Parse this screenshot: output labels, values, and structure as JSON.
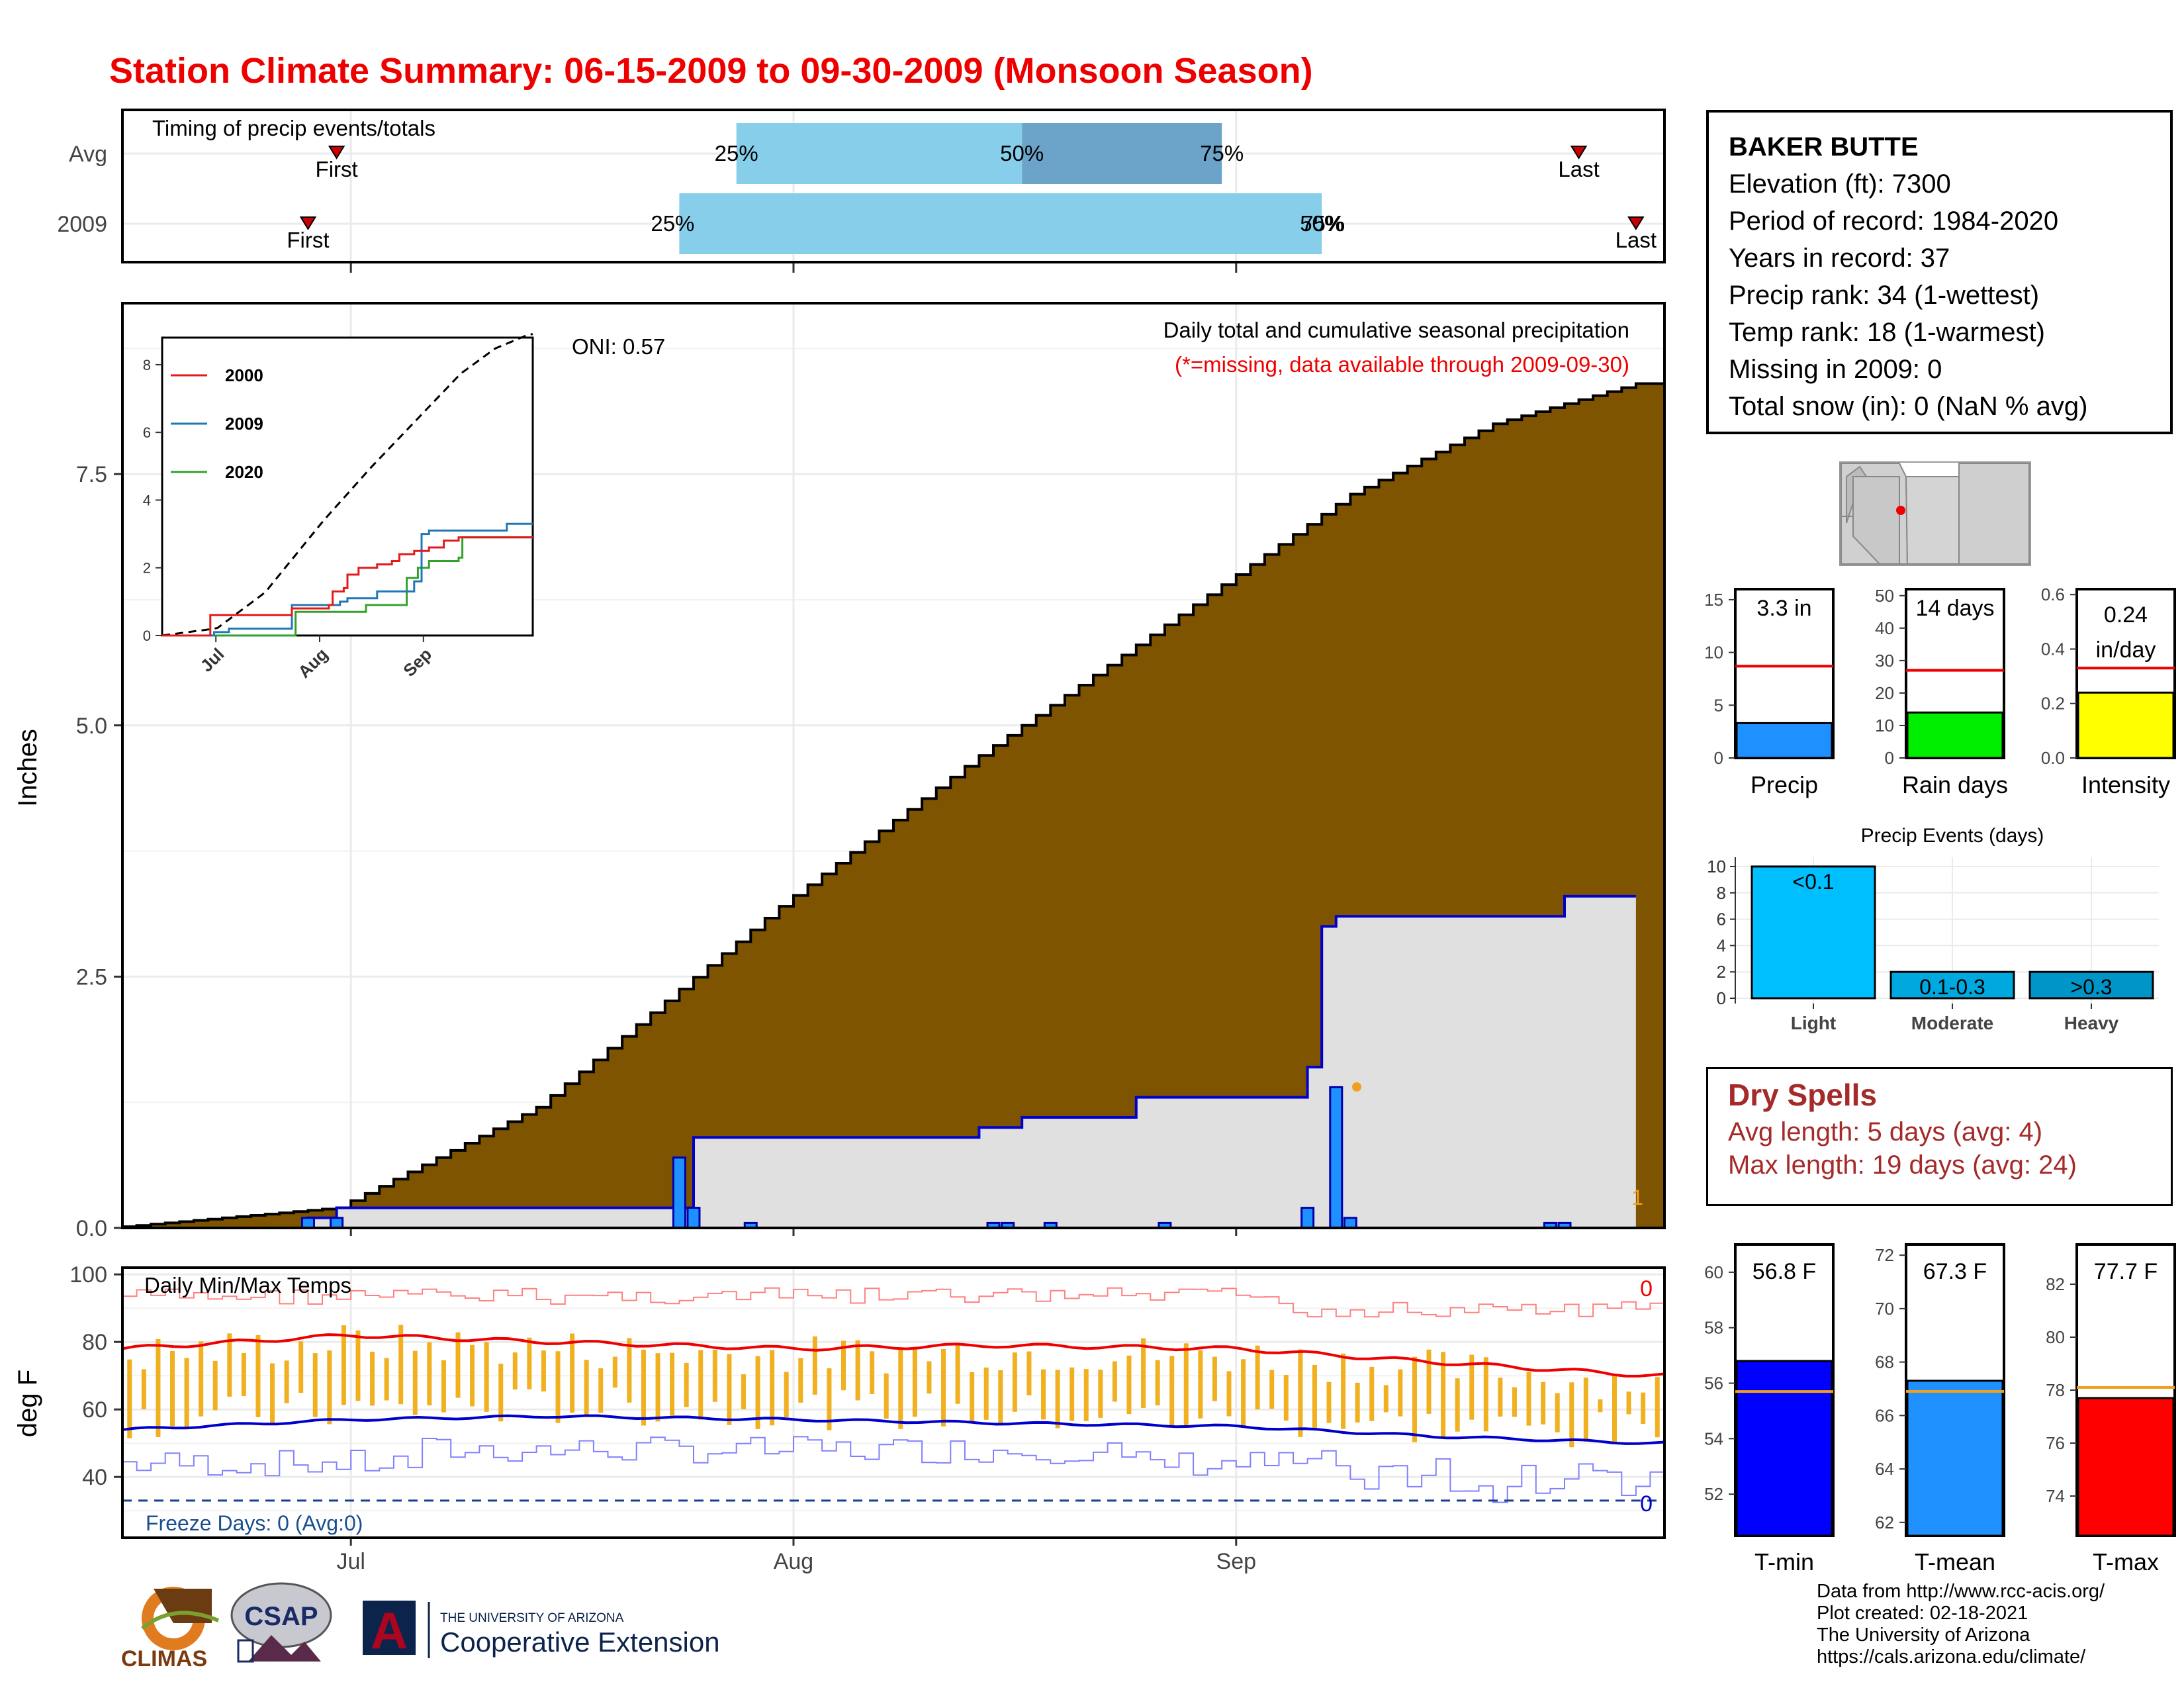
{
  "title": "Station Climate Summary: 06-15-2009 to 09-30-2009 (Monsoon Season)",
  "timing": {
    "label": "Timing of precip events/totals",
    "rows": [
      "Avg",
      "2009"
    ],
    "avg": {
      "first": "2009-06-30",
      "p25": "2009-07-28",
      "p50": "2009-08-17",
      "p75": "2009-08-31",
      "last": "2009-09-25"
    },
    "y2009": {
      "first": "2009-06-28",
      "p25": "2009-07-24",
      "p50": "2009-09-07",
      "p75": "2009-09-07",
      "last": "2009-09-29"
    },
    "first_label": "First",
    "last_label": "Last",
    "p25_label": "25%",
    "p50_label": "50%",
    "p75_label": "75%",
    "p75_2009_label": "75%",
    "colors": {
      "light": "#87ceeb",
      "dark": "#6ba3c9",
      "marker": "#cc0000"
    }
  },
  "main_chart": {
    "ylabel": "Inches",
    "yticks": [
      "0.0",
      "2.5",
      "5.0",
      "7.5"
    ],
    "ylim": [
      0,
      9.2
    ],
    "oni_label": "ONI: 0.57",
    "caption": "Daily total and cumulative seasonal precipitation",
    "caption_red": "(*=missing, data available through 2009-09-30)",
    "corner_value": "1",
    "colors": {
      "avg_fill": "#7f5400",
      "obs_fill": "#e0e0e0",
      "obs_line": "#0000cc",
      "bars": "#1e90ff"
    }
  },
  "inset": {
    "yticks": [
      "0",
      "2",
      "4",
      "6",
      "8"
    ],
    "xticks": [
      "Jul",
      "Aug",
      "Sep"
    ],
    "legend": [
      {
        "name": "2000",
        "color": "#e31a1c"
      },
      {
        "name": "2009",
        "color": "#1f78b4"
      },
      {
        "name": "2020",
        "color": "#33a02c"
      }
    ]
  },
  "temps": {
    "ylabel": "deg F",
    "yticks": [
      "40",
      "60",
      "80",
      "100"
    ],
    "label": "Daily Min/Max Temps",
    "freeze_label": "Freeze Days: 0 (Avg:0)",
    "count_top": "0",
    "count_bottom": "0",
    "xticks": [
      "Jul",
      "Aug",
      "Sep"
    ]
  },
  "station": {
    "name": "BAKER BUTTE",
    "lines": [
      "Elevation (ft): 7300",
      "Period of record: 1984-2020",
      "Years in record: 37",
      "Precip rank: 34 (1-wettest)",
      "Temp rank: 18 (1-warmest)",
      "Missing in 2009: 0",
      "Total snow (in): 0 (NaN % avg)"
    ]
  },
  "mini_bars": [
    {
      "label": "Precip",
      "value_text": "3.3 in",
      "value": 3.3,
      "avg": 8.7,
      "ymax": 16,
      "yticks": [
        "0",
        "5",
        "10",
        "15"
      ],
      "tickvals": [
        0,
        5,
        10,
        15
      ],
      "color": "#1e90ff"
    },
    {
      "label": "Rain days",
      "value_text": "14 days",
      "value": 14,
      "avg": 27,
      "ymax": 52,
      "yticks": [
        "0",
        "10",
        "20",
        "30",
        "40",
        "50"
      ],
      "tickvals": [
        0,
        10,
        20,
        30,
        40,
        50
      ],
      "color": "#00ee00"
    },
    {
      "label": "Intensity",
      "value_text": "0.24",
      "value_text2": "in/day",
      "value": 0.24,
      "avg": 0.33,
      "ymax": 0.62,
      "yticks": [
        "0.0",
        "0.2",
        "0.4",
        "0.6"
      ],
      "tickvals": [
        0,
        0.2,
        0.4,
        0.6
      ],
      "color": "#ffff00"
    }
  ],
  "events": {
    "title": "Precip Events (days)",
    "yticks": [
      "0",
      "2",
      "4",
      "6",
      "8",
      "10"
    ],
    "bars": [
      {
        "category": "Light",
        "label": "<0.1",
        "value": 10,
        "color": "#00bfff"
      },
      {
        "category": "Moderate",
        "label": "0.1-0.3",
        "value": 2,
        "color": "#00a8e0"
      },
      {
        "category": "Heavy",
        "label": ">0.3",
        "value": 2,
        "color": "#0095c8"
      }
    ]
  },
  "dry_spells": {
    "title": "Dry Spells",
    "avg_length": "Avg length: 5 days (avg: 4)",
    "max_length": "Max length: 19 days (avg: 24)",
    "color": "#a52a2a"
  },
  "temp_bars": [
    {
      "label": "T-min",
      "value_text": "56.8 F",
      "value": 56.8,
      "avg": 55.7,
      "ymin": 50.5,
      "ymax": 61,
      "yticks": [
        "52",
        "54",
        "56",
        "58",
        "60"
      ],
      "tickvals": [
        52,
        54,
        56,
        58,
        60
      ],
      "color": "#0000ff"
    },
    {
      "label": "T-mean",
      "value_text": "67.3 F",
      "value": 67.3,
      "avg": 66.9,
      "ymin": 61.5,
      "ymax": 72.4,
      "yticks": [
        "62",
        "64",
        "66",
        "68",
        "70",
        "72"
      ],
      "tickvals": [
        62,
        64,
        66,
        68,
        70,
        72
      ],
      "color": "#1e90ff"
    },
    {
      "label": "T-max",
      "value_text": "77.7 F",
      "value": 77.7,
      "avg": 78.1,
      "ymin": 72.5,
      "ymax": 83.5,
      "yticks": [
        "74",
        "76",
        "78",
        "80",
        "82"
      ],
      "tickvals": [
        74,
        76,
        78,
        80,
        82
      ],
      "color": "#ff0000"
    }
  ],
  "logos": {
    "climas": "CLIMAS",
    "csap": "CSAP",
    "ua_small": "THE UNIVERSITY OF ARIZONA",
    "ua_big": "Cooperative Extension",
    "ua_letter": "A"
  },
  "credits": [
    "Data from http://www.rcc-acis.org/",
    "Plot created: 02-18-2021",
    "The University of Arizona",
    "https://cals.arizona.edu/climate/"
  ],
  "chart_data": [
    {
      "type": "area",
      "title": "Daily total and cumulative seasonal precipitation",
      "ylabel": "Inches",
      "x_start": "2009-06-15",
      "x_end": "2009-09-30",
      "ylim": [
        0,
        9.2
      ],
      "series": [
        {
          "name": "",
          "x": [
            "2009-06-15",
            "2009-07-01",
            "2009-07-15",
            "2009-08-01",
            "2009-08-15",
            "2009-09-01",
            "2009-09-10",
            "2009-09-20",
            "2009-09-30"
          ],
          "values": [
            0.0,
            0.2,
            1.2,
            3.2,
            4.7,
            6.4,
            7.3,
            8.0,
            8.4
          ]
        },
        {
          "name": "",
          "x": [
            "2009-06-15",
            "2009-06-28",
            "2009-06-30",
            "2009-07-24",
            "2009-07-25",
            "2009-08-14",
            "2009-08-17",
            "2009-08-25",
            "2009-09-06",
            "2009-09-07",
            "2009-09-08",
            "2009-09-23",
            "2009-09-24",
            "2009-09-29"
          ],
          "values": [
            0.0,
            0.1,
            0.2,
            0.2,
            0.9,
            1.0,
            1.1,
            1.3,
            1.6,
            3.0,
            3.1,
            3.1,
            3.3,
            3.3
          ]
        }
      ],
      "daily_bars": {
        "x": [
          "2009-06-28",
          "2009-06-30",
          "2009-07-24",
          "2009-07-25",
          "2009-07-29",
          "2009-08-15",
          "2009-08-16",
          "2009-08-19",
          "2009-08-27",
          "2009-09-06",
          "2009-09-08",
          "2009-09-09",
          "2009-09-23",
          "2009-09-24"
        ],
        "values": [
          0.1,
          0.1,
          0.7,
          0.2,
          0.05,
          0.05,
          0.05,
          0.05,
          0.05,
          0.2,
          1.4,
          0.1,
          0.05,
          0.05
        ]
      }
    },
    {
      "type": "line",
      "title": "Daily Min/Max Temps",
      "ylabel": "deg F",
      "ylim": [
        22,
        102
      ],
      "series": [
        {
          "name": "",
          "x": [
            "2009-06-15",
            "2009-07-01",
            "2009-07-15",
            "2009-08-01",
            "2009-08-15",
            "2009-09-01",
            "2009-09-15",
            "2009-09-30"
          ],
          "values": [
            78,
            82,
            80,
            78,
            79,
            78,
            74,
            70
          ]
        },
        {
          "name": "",
          "x": [
            "2009-06-15",
            "2009-07-01",
            "2009-07-15",
            "2009-08-01",
            "2009-08-15",
            "2009-09-01",
            "2009-09-15",
            "2009-09-30"
          ],
          "values": [
            54,
            57,
            58,
            57,
            56,
            55,
            52,
            50
          ]
        }
      ],
      "freeze_line": 33
    }
  ]
}
